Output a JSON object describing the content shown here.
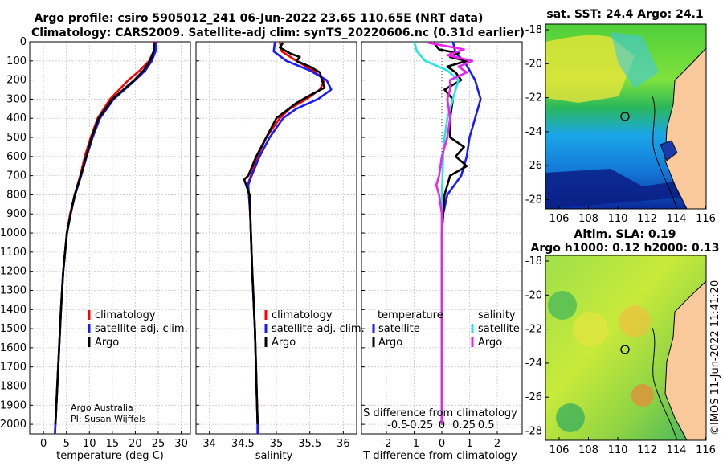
{
  "title_line1": "Argo profile: csiro 5905012_241 06-Jun-2022 23.6S 110.65E (NRT data)",
  "title_line2": "Climatology: CARS2009. Satellite-adj clim: synTS_20220606.nc (0.31d earlier)",
  "colors": {
    "climatology": "#ff0000",
    "satellite": "#1a1aff",
    "argo": "#000000",
    "sat_salinity": "#22e5e5",
    "argo_salinity": "#ee22ee"
  },
  "credit": {
    "line1": "Argo Australia",
    "line2": "PI: Susan Wijffels"
  },
  "copyright": "©IMOS 11-Jun-2022 11:41:20",
  "legend": {
    "climatology": "climatology",
    "satellite_adj": "satellite-adj. clim.",
    "argo": "Argo",
    "temperature_header": "temperature",
    "salinity_header": "salinity",
    "satellite": "satellite"
  },
  "maps": [
    {
      "title": "sat. SST: 24.4 Argo: 24.1",
      "x_ticks": [
        "106",
        "108",
        "110",
        "112",
        "114",
        "116"
      ],
      "y_ticks": [
        "-18",
        "-20",
        "-22",
        "-24",
        "-26",
        "-28"
      ],
      "profile_lon": 110.65,
      "profile_lat": -23.6
    },
    {
      "title_line1": "Altim. SLA: 0.19",
      "title_line2": "Argo h1000: 0.12 h2000: 0.13",
      "x_ticks": [
        "106",
        "108",
        "110",
        "112",
        "114",
        "116"
      ],
      "y_ticks": [
        "-18",
        "-20",
        "-22",
        "-24",
        "-26",
        "-28"
      ],
      "profile_lon": 110.65,
      "profile_lat": -23.6
    }
  ],
  "chart_data": [
    {
      "type": "line",
      "name": "temperature",
      "xlabel": "temperature (deg C)",
      "ylabel": "",
      "xlim": [
        -3,
        32
      ],
      "ylim": [
        2050,
        0
      ],
      "x_ticks": [
        0,
        5,
        10,
        15,
        20,
        25,
        30
      ],
      "y_ticks": [
        0,
        100,
        200,
        300,
        400,
        500,
        600,
        700,
        800,
        900,
        1000,
        1100,
        1200,
        1300,
        1400,
        1500,
        1600,
        1700,
        1800,
        1900,
        2000
      ],
      "series": [
        {
          "name": "climatology",
          "color": "#ff0000",
          "depth": [
            0,
            50,
            100,
            150,
            200,
            300,
            400,
            500,
            600,
            700,
            800,
            900,
            1000,
            1200,
            1400,
            1600,
            1800,
            2000,
            2050
          ],
          "values": [
            24.2,
            24.0,
            23.0,
            21.0,
            18.5,
            14.5,
            11.8,
            10.3,
            9.0,
            8.0,
            6.8,
            5.8,
            5.1,
            4.3,
            3.8,
            3.4,
            3.0,
            2.6,
            2.5
          ]
        },
        {
          "name": "satellite-adj. clim.",
          "color": "#1a1aff",
          "depth": [
            0,
            50,
            100,
            150,
            200,
            300,
            400,
            500,
            600,
            700,
            800,
            900,
            1000,
            1200,
            1400,
            1600,
            1800,
            2000,
            2050
          ],
          "values": [
            24.6,
            24.4,
            23.6,
            22.2,
            20.0,
            15.3,
            12.3,
            10.7,
            9.4,
            8.2,
            6.9,
            5.9,
            5.1,
            4.3,
            3.8,
            3.4,
            3.0,
            2.6,
            2.5
          ]
        },
        {
          "name": "Argo",
          "color": "#000000",
          "depth": [
            5,
            50,
            100,
            150,
            200,
            300,
            400,
            500,
            600,
            700,
            800,
            900,
            1000,
            1200,
            1400,
            1600,
            1800,
            2000
          ],
          "values": [
            24.1,
            24.0,
            23.2,
            21.8,
            19.8,
            15.0,
            12.0,
            10.5,
            9.3,
            8.1,
            6.8,
            5.9,
            5.1,
            4.3,
            3.8,
            3.4,
            3.0,
            2.6
          ]
        }
      ]
    },
    {
      "type": "line",
      "name": "salinity",
      "xlabel": "salinity",
      "ylabel": "",
      "xlim": [
        33.8,
        36.2
      ],
      "ylim": [
        2050,
        0
      ],
      "x_ticks": [
        34,
        34.5,
        35,
        35.5,
        36
      ],
      "series": [
        {
          "name": "climatology",
          "color": "#ff0000",
          "depth": [
            0,
            50,
            100,
            150,
            200,
            250,
            300,
            350,
            400,
            500,
            600,
            700,
            750,
            800,
            900,
            1000,
            1200,
            1500,
            2000,
            2050
          ],
          "values": [
            35.05,
            35.08,
            35.3,
            35.55,
            35.72,
            35.65,
            35.45,
            35.2,
            35.05,
            34.85,
            34.72,
            34.62,
            34.57,
            34.59,
            34.61,
            34.62,
            34.64,
            34.68,
            34.72,
            34.72
          ]
        },
        {
          "name": "satellite-adj. clim.",
          "color": "#1a1aff",
          "depth": [
            0,
            50,
            100,
            150,
            200,
            250,
            300,
            350,
            400,
            500,
            600,
            700,
            750,
            800,
            900,
            1000,
            1200,
            1500,
            2000,
            2050
          ],
          "values": [
            34.98,
            34.96,
            35.15,
            35.5,
            35.75,
            35.82,
            35.62,
            35.3,
            35.1,
            34.9,
            34.75,
            34.63,
            34.58,
            34.59,
            34.61,
            34.62,
            34.64,
            34.68,
            34.72,
            34.72
          ]
        },
        {
          "name": "Argo",
          "color": "#000000",
          "depth": [
            5,
            30,
            60,
            80,
            100,
            130,
            160,
            200,
            240,
            280,
            320,
            360,
            400,
            500,
            600,
            700,
            720,
            760,
            800,
            900,
            1000,
            1200,
            1500,
            2000
          ],
          "values": [
            35.1,
            35.05,
            35.2,
            35.35,
            35.3,
            35.5,
            35.65,
            35.68,
            35.72,
            35.5,
            35.3,
            35.15,
            35.0,
            34.85,
            34.7,
            34.58,
            34.52,
            34.56,
            34.6,
            34.61,
            34.62,
            34.64,
            34.68,
            34.72
          ]
        }
      ]
    },
    {
      "type": "line",
      "name": "differences",
      "xlabel": "T difference from climatology",
      "ylabel": "",
      "x2label": "S difference from climatology",
      "xlim": [
        -2.9,
        2.9
      ],
      "ylim": [
        2050,
        0
      ],
      "x_ticks": [
        -2,
        -1,
        0,
        1,
        2
      ],
      "x2_ticks": [
        "-0.5",
        "-0.25",
        "0",
        "0.25",
        "0.5"
      ],
      "series": [
        {
          "name": "temperature satellite",
          "color": "#1a1aff",
          "depth": [
            0,
            60,
            100,
            150,
            200,
            250,
            300,
            400,
            500,
            600,
            700,
            800,
            900,
            1000,
            1200,
            1500,
            2000
          ],
          "values": [
            0.4,
            0.5,
            0.8,
            1.0,
            1.2,
            1.3,
            1.4,
            1.2,
            1.0,
            0.9,
            0.7,
            0.2,
            0.05,
            0.0,
            0.0,
            0.0,
            0.0
          ]
        },
        {
          "name": "temperature Argo",
          "color": "#000000",
          "depth": [
            5,
            40,
            60,
            80,
            100,
            130,
            160,
            200,
            250,
            300,
            400,
            500,
            550,
            600,
            650,
            700,
            800,
            900,
            1000,
            1200,
            1500,
            2000
          ],
          "values": [
            -0.3,
            -0.1,
            0.6,
            0.3,
            0.9,
            0.2,
            0.5,
            0.7,
            0.1,
            0.4,
            0.3,
            0.3,
            0.8,
            0.5,
            0.9,
            0.3,
            0.1,
            0.05,
            0.0,
            0.0,
            0.0,
            0.0
          ]
        },
        {
          "name": "salinity satellite",
          "color": "#22e5e5",
          "depth": [
            0,
            50,
            100,
            150,
            200,
            300,
            400,
            500,
            600,
            800,
            1000,
            1500,
            2000
          ],
          "values": [
            -1.0,
            -0.9,
            -0.6,
            0.2,
            0.6,
            0.4,
            0.2,
            0.1,
            0.05,
            0.0,
            0.0,
            0.0,
            0.0
          ]
        },
        {
          "name": "salinity Argo",
          "color": "#ee22ee",
          "depth": [
            5,
            40,
            70,
            100,
            130,
            160,
            200,
            250,
            300,
            400,
            500,
            600,
            700,
            750,
            800,
            900,
            1000,
            1200,
            1500,
            2000
          ],
          "values": [
            -0.5,
            0.8,
            0.2,
            1.1,
            0.6,
            0.9,
            0.3,
            0.3,
            0.2,
            0.3,
            0.2,
            0.0,
            -0.1,
            -0.2,
            -0.1,
            0.0,
            0.0,
            0.0,
            0.0,
            0.0
          ]
        }
      ]
    }
  ]
}
